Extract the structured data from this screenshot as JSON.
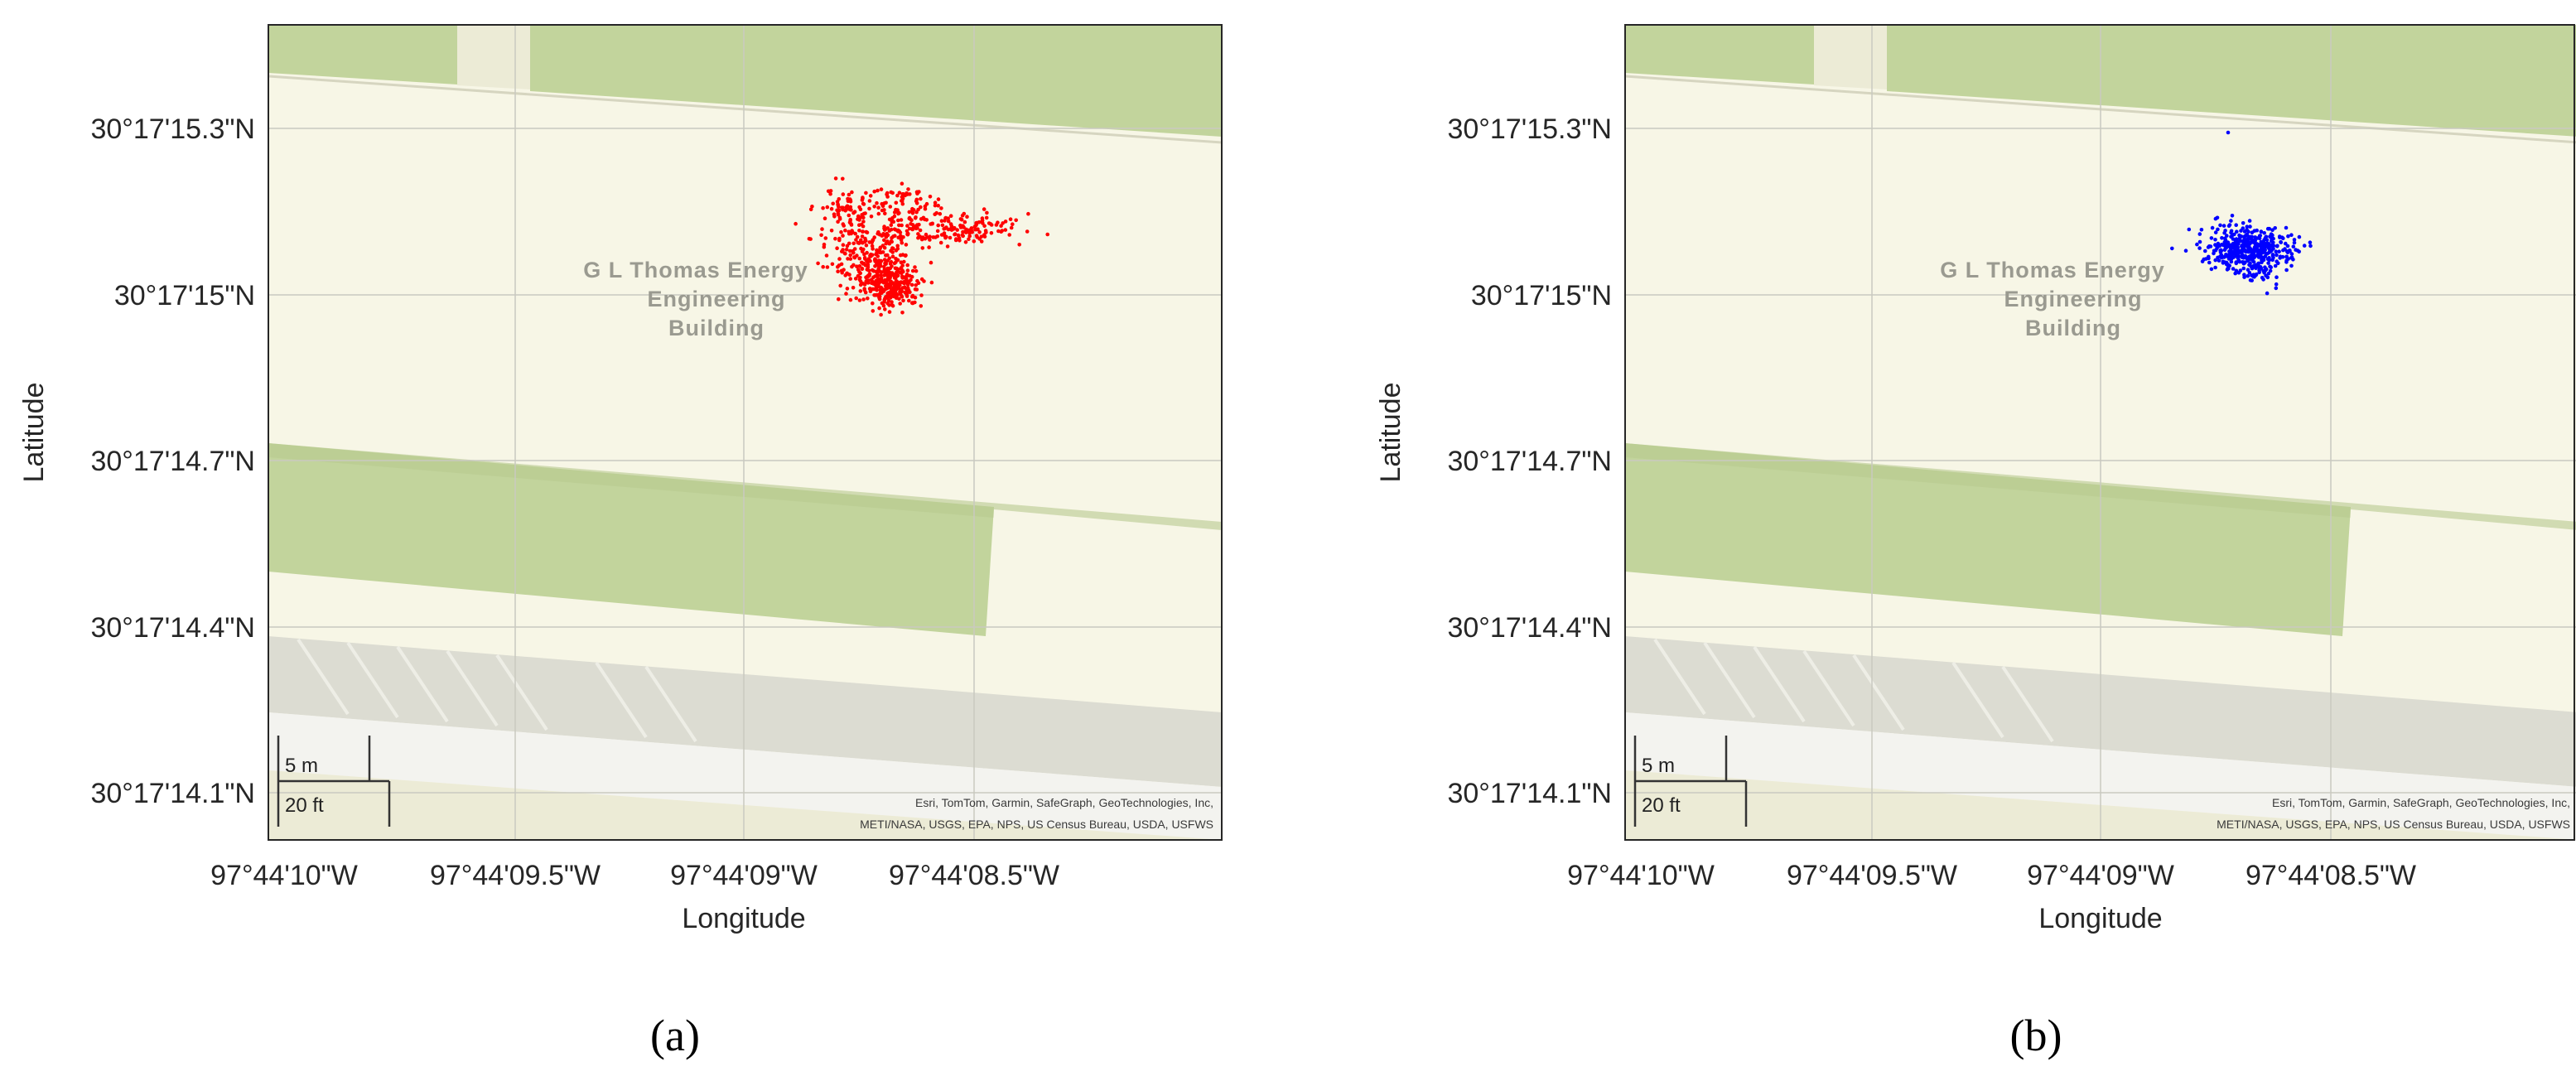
{
  "panels": [
    {
      "id": "a",
      "caption": "(a)",
      "xlabel": "Longitude",
      "ylabel": "Latitude",
      "x_ticks": [
        "97°44'10\"W",
        "97°44'09.5\"W",
        "97°44'09\"W",
        "97°44'08.5\"W"
      ],
      "y_ticks": [
        "30°17'15.3\"N",
        "30°17'15\"N",
        "30°17'14.7\"N",
        "30°17'14.4\"N",
        "30°17'14.1\"N"
      ],
      "building_label": [
        "G L Thomas Energy",
        "Engineering",
        "Building"
      ],
      "scale_bar": {
        "metric": "5 m",
        "imperial": "20 ft"
      },
      "attribution": [
        "Esri, TomTom, Garmin, SafeGraph, GeoTechnologies, Inc,",
        "METI/NASA, USGS, EPA, NPS, US Census Bureau, USDA, USFWS"
      ],
      "points_color": "#ff0000",
      "points_description": "dense red scatter of position fixes"
    },
    {
      "id": "b",
      "caption": "(b)",
      "xlabel": "Longitude",
      "ylabel": "Latitude",
      "x_ticks": [
        "97°44'10\"W",
        "97°44'09.5\"W",
        "97°44'09\"W",
        "97°44'08.5\"W"
      ],
      "y_ticks": [
        "30°17'15.3\"N",
        "30°17'15\"N",
        "30°17'14.7\"N",
        "30°17'14.4\"N",
        "30°17'14.1\"N"
      ],
      "building_label": [
        "G L Thomas Energy",
        "Engineering",
        "Building"
      ],
      "scale_bar": {
        "metric": "5 m",
        "imperial": "20 ft"
      },
      "attribution": [
        "Esri, TomTom, Garmin, SafeGraph, GeoTechnologies, Inc,",
        "METI/NASA, USGS, EPA, NPS, US Census Bureau, USDA, USFWS"
      ],
      "points_color": "#0000ff",
      "points_description": "compact blue cluster of position fixes"
    }
  ],
  "colors": {
    "map_base": "#f7f6e6",
    "green_strip": "#c2d49c",
    "grey_band": "#dcdcd2",
    "road": "#f3f3ef",
    "grid": "#c9c9c0"
  }
}
